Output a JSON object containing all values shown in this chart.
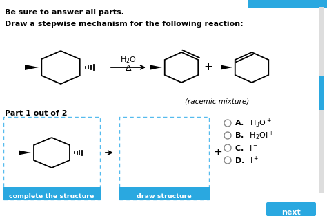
{
  "bg_color": "#ffffff",
  "title_line1": "Be sure to answer all parts.",
  "title_line2": "Draw a stepwise mechanism for the following reaction:",
  "racemic_text": "(racemic mixture)",
  "part_text": "Part 1 out of 2",
  "btn1_text": "complete the structure",
  "btn2_text": "draw structure",
  "btn_color": "#2aa8e0",
  "btn_text_color": "#ffffff",
  "border_color": "#55bbee",
  "top_bar_color": "#2aa8e0",
  "scroll_color": "#2aa8e0",
  "next_btn_color": "#2aa8e0",
  "choice_A_text": "H$_3$O$^+$",
  "choice_B_text": "H$_2$OI$^+$",
  "choice_C_text": "I$^-$",
  "choice_D_text": "I$^+$"
}
